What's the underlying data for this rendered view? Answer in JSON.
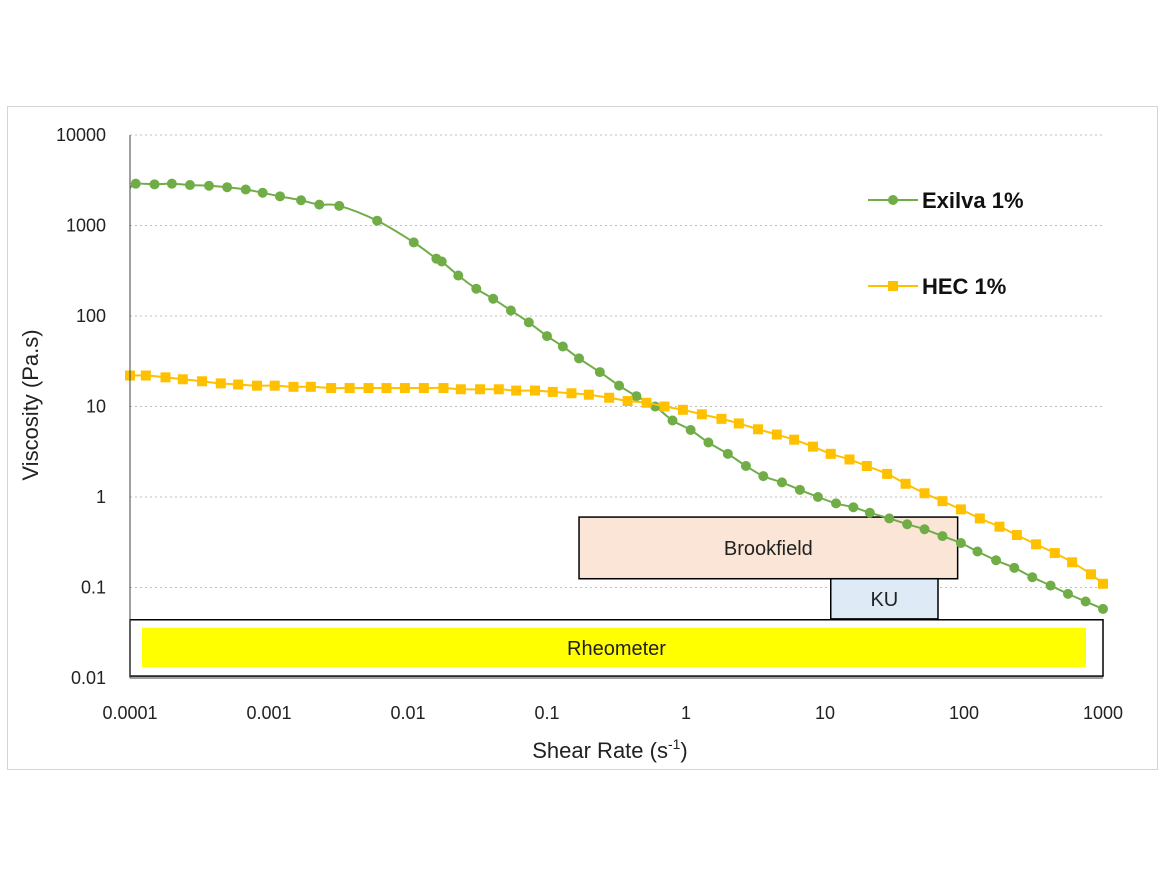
{
  "chart_data": {
    "type": "line",
    "xlabel_main": "Shear Rate (s",
    "xlabel_sup": "-1",
    "xlabel_end": ")",
    "ylabel": "Viscosity (Pa.s)",
    "x_scale": "log",
    "y_scale": "log",
    "xlim": [
      0.0001,
      1000
    ],
    "ylim": [
      0.01,
      10000
    ],
    "x_ticks": [
      0.0001,
      0.001,
      0.01,
      0.1,
      1,
      10,
      100,
      1000
    ],
    "x_tick_labels": [
      "0.0001",
      "0.001",
      "0.01",
      "0.1",
      "1",
      "10",
      "100",
      "1000"
    ],
    "y_ticks": [
      10000,
      1000,
      100,
      10,
      1,
      0.1,
      0.01
    ],
    "y_tick_labels": [
      "10000",
      "1000",
      "100",
      "10",
      "1",
      "0.1",
      "0.01"
    ],
    "grid": "horizontal dotted",
    "legend_position": "top-right",
    "series": [
      {
        "name": "Exilva 1%",
        "color": "#70ad47",
        "marker": "circle",
        "x": [
          0.0001,
          0.00011,
          0.00015,
          0.0002,
          0.00027,
          0.00037,
          0.0005,
          0.00068,
          0.0009,
          0.0012,
          0.0017,
          0.0023,
          0.0032,
          0.006,
          0.011,
          0.016,
          0.0175,
          0.023,
          0.031,
          0.041,
          0.055,
          0.074,
          0.1,
          0.13,
          0.17,
          0.24,
          0.33,
          0.44,
          0.6,
          0.8,
          1.08,
          1.45,
          2.0,
          2.7,
          3.6,
          4.9,
          6.6,
          8.9,
          12,
          16,
          21,
          29,
          39,
          52,
          70,
          95,
          125,
          170,
          230,
          310,
          420,
          560,
          750,
          1000
        ],
        "y": [
          2600,
          2900,
          2850,
          2900,
          2800,
          2750,
          2650,
          2500,
          2300,
          2100,
          1900,
          1700,
          1650,
          1130,
          650,
          430,
          400,
          280,
          200,
          155,
          115,
          85,
          60,
          46,
          34,
          24,
          17,
          13,
          10,
          7,
          5.5,
          4,
          3,
          2.2,
          1.7,
          1.45,
          1.2,
          1.0,
          0.85,
          0.77,
          0.67,
          0.58,
          0.5,
          0.44,
          0.37,
          0.31,
          0.25,
          0.2,
          0.165,
          0.13,
          0.105,
          0.085,
          0.07,
          0.058
        ],
        "marker_count_start": 1
      },
      {
        "name": "HEC 1%",
        "color": "#ffc000",
        "marker": "square",
        "x": [
          0.0001,
          0.00013,
          0.00018,
          0.00024,
          0.00033,
          0.00045,
          0.0006,
          0.00082,
          0.0011,
          0.0015,
          0.002,
          0.0028,
          0.0038,
          0.0052,
          0.007,
          0.0095,
          0.013,
          0.018,
          0.024,
          0.033,
          0.045,
          0.06,
          0.082,
          0.11,
          0.15,
          0.2,
          0.28,
          0.38,
          0.52,
          0.7,
          0.95,
          1.3,
          1.8,
          2.4,
          3.3,
          4.5,
          6.0,
          8.2,
          11,
          15,
          20,
          28,
          38,
          52,
          70,
          95,
          130,
          180,
          240,
          330,
          450,
          600,
          820,
          1000
        ],
        "y": [
          22,
          22,
          21,
          20,
          19,
          18,
          17.5,
          17,
          17,
          16.5,
          16.5,
          16,
          16,
          16,
          16,
          16,
          16,
          16,
          15.5,
          15.5,
          15.5,
          15,
          15,
          14.5,
          14,
          13.5,
          12.5,
          11.5,
          11,
          10,
          9.2,
          8.2,
          7.3,
          6.5,
          5.6,
          4.9,
          4.3,
          3.6,
          3.0,
          2.6,
          2.2,
          1.8,
          1.4,
          1.1,
          0.9,
          0.73,
          0.58,
          0.47,
          0.38,
          0.3,
          0.24,
          0.19,
          0.14,
          0.11
        ]
      }
    ],
    "ranges": [
      {
        "name": "Brookfield",
        "x_from": 0.17,
        "x_to": 90,
        "y_from": 0.125,
        "y_to": 0.6,
        "fill": "#fbe5d6",
        "stroke": "#000000"
      },
      {
        "name": "KU",
        "x_from": 11,
        "x_to": 65,
        "y_from": 0.045,
        "y_to": 0.125,
        "fill": "#deebf7",
        "stroke": "#000000"
      },
      {
        "name": "Rheometer",
        "x_from": 0.0001,
        "x_to": 1000,
        "y_from": 0.0105,
        "y_to": 0.044,
        "fill": "#ffffff",
        "stroke": "#000000",
        "inner_fill": "#ffff00"
      }
    ]
  }
}
